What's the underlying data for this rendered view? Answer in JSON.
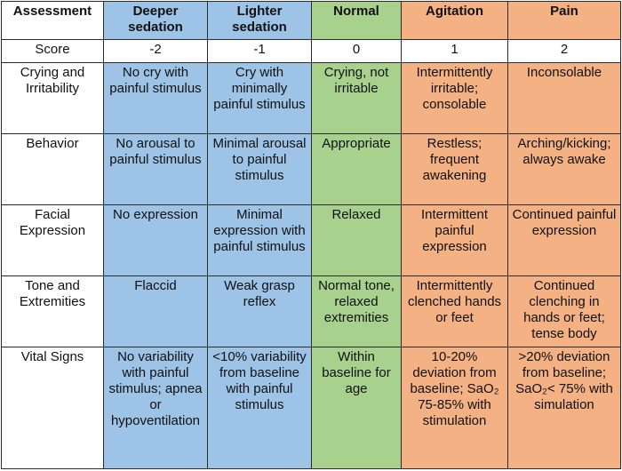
{
  "header": {
    "assessment": "Assessment",
    "deeper": "Deeper sedation",
    "lighter": "Lighter sedation",
    "normal": "Normal",
    "agitation": "Agitation",
    "pain": "Pain"
  },
  "score": {
    "label": "Score",
    "deeper": "-2",
    "lighter": "-1",
    "normal": "0",
    "agitation": "1",
    "pain": "2"
  },
  "rows": [
    {
      "label": "Crying and Irritability",
      "deeper": "No cry with painful stimulus",
      "lighter": "Cry with minimally painful stimulus",
      "normal": "Crying, not irritable",
      "agitation": "Intermittently irritable; consolable",
      "pain": "Inconsolable"
    },
    {
      "label": "Behavior",
      "deeper": "No arousal to painful stimulus",
      "lighter": "Minimal arousal to painful stimulus",
      "normal": "Appropriate",
      "agitation": "Restless; frequent awakening",
      "pain": "Arching/kicking; always awake"
    },
    {
      "label": "Facial Expression",
      "deeper": "No expression",
      "lighter": "Minimal expression with painful stimulus",
      "normal": "Relaxed",
      "agitation": "Intermittent painful expression",
      "pain": "Continued painful expression"
    },
    {
      "label": "Tone and Extremities",
      "deeper": "Flaccid",
      "lighter": "Weak grasp reflex",
      "normal": "Normal tone, relaxed extremities",
      "agitation": "Intermittently clenched hands or feet",
      "pain": "Continued clenching in hands or feet; tense body"
    },
    {
      "label": "Vital Signs",
      "deeper": "No variability with painful stimulus; apnea or hypoventilation",
      "lighter": "<10% variability from baseline with painful stimulus",
      "normal": "Within baseline for age",
      "agitation": "10-20% deviation from baseline; SaO₂ 75-85% with stimulation",
      "pain": ">20% deviation from baseline; SaO₂< 75% with simulation"
    }
  ]
}
